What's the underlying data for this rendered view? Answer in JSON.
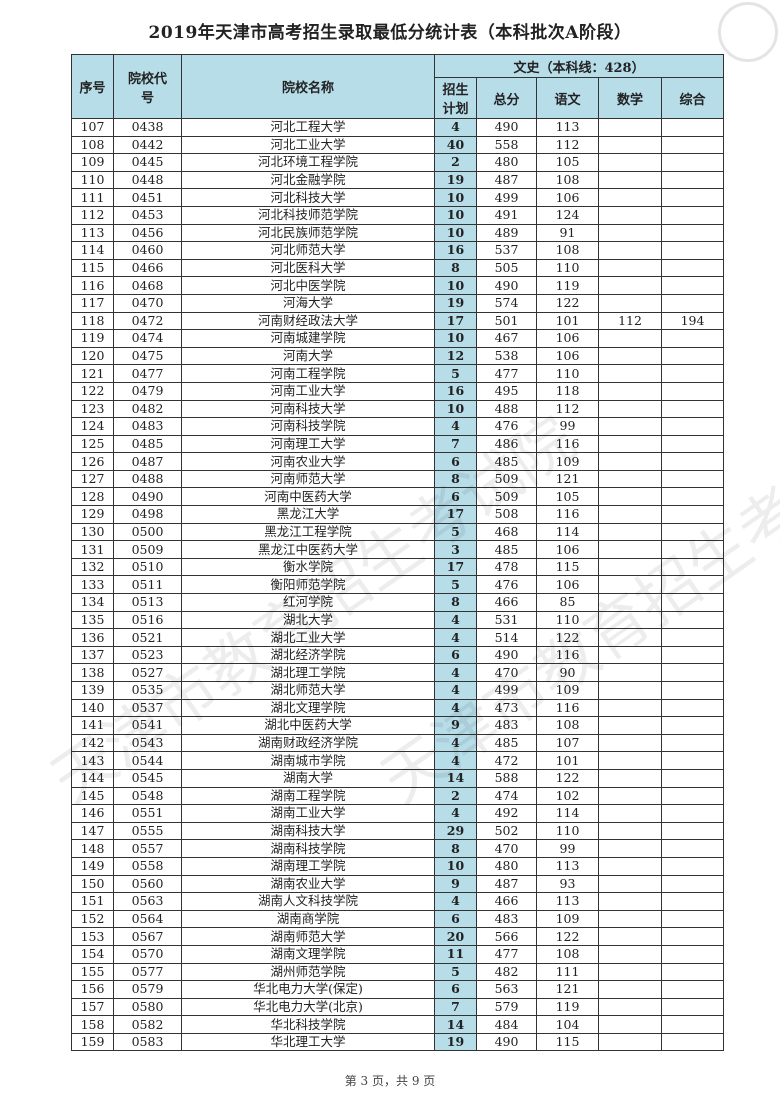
{
  "title": "2019年天津市高考招生录取最低分统计表（本科批次A阶段）",
  "watermark": "天津市教育招生考试院",
  "colors": {
    "header_bg": "#b7dde8",
    "plan_bg": "#b7dde8"
  },
  "headers": {
    "seq": "序号",
    "code": "院校代号",
    "name": "院校名称",
    "group": "文史（本科线：428）",
    "plan": "招生计划",
    "total": "总分",
    "chinese": "语文",
    "math": "数学",
    "comprehensive": "综合"
  },
  "rows": [
    [
      "107",
      "0438",
      "河北工程大学",
      "4",
      "490",
      "113",
      "",
      ""
    ],
    [
      "108",
      "0442",
      "河北工业大学",
      "40",
      "558",
      "112",
      "",
      ""
    ],
    [
      "109",
      "0445",
      "河北环境工程学院",
      "2",
      "480",
      "105",
      "",
      ""
    ],
    [
      "110",
      "0448",
      "河北金融学院",
      "19",
      "487",
      "108",
      "",
      ""
    ],
    [
      "111",
      "0451",
      "河北科技大学",
      "10",
      "499",
      "106",
      "",
      ""
    ],
    [
      "112",
      "0453",
      "河北科技师范学院",
      "10",
      "491",
      "124",
      "",
      ""
    ],
    [
      "113",
      "0456",
      "河北民族师范学院",
      "10",
      "489",
      "91",
      "",
      ""
    ],
    [
      "114",
      "0460",
      "河北师范大学",
      "16",
      "537",
      "108",
      "",
      ""
    ],
    [
      "115",
      "0466",
      "河北医科大学",
      "8",
      "505",
      "110",
      "",
      ""
    ],
    [
      "116",
      "0468",
      "河北中医学院",
      "10",
      "490",
      "119",
      "",
      ""
    ],
    [
      "117",
      "0470",
      "河海大学",
      "19",
      "574",
      "122",
      "",
      ""
    ],
    [
      "118",
      "0472",
      "河南财经政法大学",
      "17",
      "501",
      "101",
      "112",
      "194"
    ],
    [
      "119",
      "0474",
      "河南城建学院",
      "10",
      "467",
      "106",
      "",
      ""
    ],
    [
      "120",
      "0475",
      "河南大学",
      "12",
      "538",
      "106",
      "",
      ""
    ],
    [
      "121",
      "0477",
      "河南工程学院",
      "5",
      "477",
      "110",
      "",
      ""
    ],
    [
      "122",
      "0479",
      "河南工业大学",
      "16",
      "495",
      "118",
      "",
      ""
    ],
    [
      "123",
      "0482",
      "河南科技大学",
      "10",
      "488",
      "112",
      "",
      ""
    ],
    [
      "124",
      "0483",
      "河南科技学院",
      "4",
      "476",
      "99",
      "",
      ""
    ],
    [
      "125",
      "0485",
      "河南理工大学",
      "7",
      "486",
      "116",
      "",
      ""
    ],
    [
      "126",
      "0487",
      "河南农业大学",
      "6",
      "485",
      "109",
      "",
      ""
    ],
    [
      "127",
      "0488",
      "河南师范大学",
      "8",
      "509",
      "121",
      "",
      ""
    ],
    [
      "128",
      "0490",
      "河南中医药大学",
      "6",
      "509",
      "105",
      "",
      ""
    ],
    [
      "129",
      "0498",
      "黑龙江大学",
      "17",
      "508",
      "116",
      "",
      ""
    ],
    [
      "130",
      "0500",
      "黑龙江工程学院",
      "5",
      "468",
      "114",
      "",
      ""
    ],
    [
      "131",
      "0509",
      "黑龙江中医药大学",
      "3",
      "485",
      "106",
      "",
      ""
    ],
    [
      "132",
      "0510",
      "衡水学院",
      "17",
      "478",
      "115",
      "",
      ""
    ],
    [
      "133",
      "0511",
      "衡阳师范学院",
      "5",
      "476",
      "106",
      "",
      ""
    ],
    [
      "134",
      "0513",
      "红河学院",
      "8",
      "466",
      "85",
      "",
      ""
    ],
    [
      "135",
      "0516",
      "湖北大学",
      "4",
      "531",
      "110",
      "",
      ""
    ],
    [
      "136",
      "0521",
      "湖北工业大学",
      "4",
      "514",
      "122",
      "",
      ""
    ],
    [
      "137",
      "0523",
      "湖北经济学院",
      "6",
      "490",
      "116",
      "",
      ""
    ],
    [
      "138",
      "0527",
      "湖北理工学院",
      "4",
      "470",
      "90",
      "",
      ""
    ],
    [
      "139",
      "0535",
      "湖北师范大学",
      "4",
      "499",
      "109",
      "",
      ""
    ],
    [
      "140",
      "0537",
      "湖北文理学院",
      "4",
      "473",
      "116",
      "",
      ""
    ],
    [
      "141",
      "0541",
      "湖北中医药大学",
      "9",
      "483",
      "108",
      "",
      ""
    ],
    [
      "142",
      "0543",
      "湖南财政经济学院",
      "4",
      "485",
      "107",
      "",
      ""
    ],
    [
      "143",
      "0544",
      "湖南城市学院",
      "4",
      "472",
      "101",
      "",
      ""
    ],
    [
      "144",
      "0545",
      "湖南大学",
      "14",
      "588",
      "122",
      "",
      ""
    ],
    [
      "145",
      "0548",
      "湖南工程学院",
      "2",
      "474",
      "102",
      "",
      ""
    ],
    [
      "146",
      "0551",
      "湖南工业大学",
      "4",
      "492",
      "114",
      "",
      ""
    ],
    [
      "147",
      "0555",
      "湖南科技大学",
      "29",
      "502",
      "110",
      "",
      ""
    ],
    [
      "148",
      "0557",
      "湖南科技学院",
      "8",
      "470",
      "99",
      "",
      ""
    ],
    [
      "149",
      "0558",
      "湖南理工学院",
      "10",
      "480",
      "113",
      "",
      ""
    ],
    [
      "150",
      "0560",
      "湖南农业大学",
      "9",
      "487",
      "93",
      "",
      ""
    ],
    [
      "151",
      "0563",
      "湖南人文科技学院",
      "4",
      "466",
      "113",
      "",
      ""
    ],
    [
      "152",
      "0564",
      "湖南商学院",
      "6",
      "483",
      "109",
      "",
      ""
    ],
    [
      "153",
      "0567",
      "湖南师范大学",
      "20",
      "566",
      "122",
      "",
      ""
    ],
    [
      "154",
      "0570",
      "湖南文理学院",
      "11",
      "477",
      "108",
      "",
      ""
    ],
    [
      "155",
      "0577",
      "湖州师范学院",
      "5",
      "482",
      "111",
      "",
      ""
    ],
    [
      "156",
      "0579",
      "华北电力大学(保定)",
      "6",
      "563",
      "121",
      "",
      ""
    ],
    [
      "157",
      "0580",
      "华北电力大学(北京)",
      "7",
      "579",
      "119",
      "",
      ""
    ],
    [
      "158",
      "0582",
      "华北科技学院",
      "14",
      "484",
      "104",
      "",
      ""
    ],
    [
      "159",
      "0583",
      "华北理工大学",
      "19",
      "490",
      "115",
      "",
      ""
    ]
  ],
  "footer": "第 3 页，共 9 页"
}
